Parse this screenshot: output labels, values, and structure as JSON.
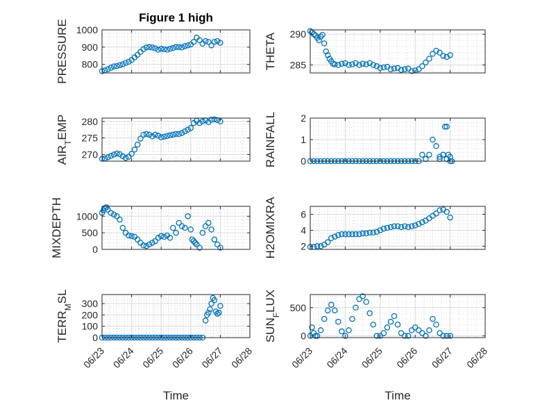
{
  "figure": {
    "title": "Figure 1 high",
    "marker_color": "#0072BD",
    "x_tick_labels": [
      "06/23",
      "06/24",
      "06/25",
      "06/26",
      "06/27",
      "06/28"
    ],
    "xlabel": "Time"
  },
  "chart_data": [
    {
      "type": "scatter",
      "title": "Figure 1 high",
      "ylabel": [
        "PRESSURE"
      ],
      "xlim": [
        0,
        5
      ],
      "ylim": [
        750,
        1000
      ],
      "yticks": [
        800,
        900,
        1000
      ],
      "grid": true,
      "x": [
        0,
        0.1,
        0.2,
        0.3,
        0.4,
        0.5,
        0.6,
        0.7,
        0.8,
        0.9,
        1.0,
        1.1,
        1.2,
        1.3,
        1.4,
        1.5,
        1.6,
        1.7,
        1.8,
        1.9,
        2.0,
        2.1,
        2.2,
        2.3,
        2.4,
        2.5,
        2.6,
        2.7,
        2.8,
        2.9,
        3.0,
        3.1,
        3.2,
        3.3,
        3.4,
        3.5,
        3.6,
        3.7,
        3.8,
        3.9,
        4.0
      ],
      "y": [
        760,
        765,
        772,
        780,
        788,
        790,
        795,
        800,
        808,
        815,
        825,
        840,
        855,
        872,
        888,
        898,
        900,
        897,
        893,
        885,
        890,
        888,
        885,
        890,
        895,
        900,
        900,
        898,
        905,
        910,
        915,
        930,
        955,
        940,
        920,
        935,
        930,
        910,
        930,
        935,
        925
      ]
    },
    {
      "type": "scatter",
      "ylabel": [
        "THETA"
      ],
      "xlim": [
        0,
        5
      ],
      "ylim": [
        283.7,
        290.7
      ],
      "yticks": [
        285,
        290
      ],
      "grid": true,
      "x": [
        0,
        0.05,
        0.1,
        0.15,
        0.2,
        0.25,
        0.3,
        0.35,
        0.4,
        0.45,
        0.5,
        0.55,
        0.6,
        0.65,
        0.7,
        0.8,
        0.9,
        1.0,
        1.1,
        1.2,
        1.3,
        1.4,
        1.5,
        1.6,
        1.7,
        1.8,
        1.9,
        2.0,
        2.1,
        2.2,
        2.3,
        2.4,
        2.5,
        2.6,
        2.7,
        2.8,
        2.9,
        3.0,
        3.1,
        3.2,
        3.3,
        3.4,
        3.5,
        3.6,
        3.7,
        3.8,
        3.9,
        4.0
      ],
      "y": [
        290.5,
        290.3,
        290.0,
        289.8,
        289.4,
        289.0,
        289.6,
        289.9,
        288.5,
        287.2,
        286.6,
        286.0,
        285.6,
        285.2,
        285.1,
        285.0,
        285.2,
        285.3,
        285.0,
        285.1,
        285.3,
        285.0,
        285.2,
        285.1,
        285.3,
        285.0,
        284.8,
        284.5,
        284.6,
        284.7,
        284.3,
        284.4,
        284.5,
        284.2,
        284.3,
        284.4,
        284.0,
        284.1,
        284.3,
        284.8,
        285.4,
        286.0,
        286.8,
        287.3,
        287.0,
        286.5,
        286.3,
        286.6
      ]
    },
    {
      "type": "scatter",
      "ylabel": [
        "AIR",
        "T",
        "EMP"
      ],
      "xlim": [
        0,
        5
      ],
      "ylim": [
        268,
        281
      ],
      "yticks": [
        270,
        275,
        280
      ],
      "grid": true,
      "x": [
        0,
        0.1,
        0.2,
        0.3,
        0.4,
        0.5,
        0.6,
        0.7,
        0.8,
        0.9,
        1.0,
        1.1,
        1.2,
        1.3,
        1.4,
        1.5,
        1.6,
        1.7,
        1.8,
        1.9,
        2.0,
        2.1,
        2.2,
        2.3,
        2.4,
        2.5,
        2.6,
        2.7,
        2.8,
        2.9,
        3.0,
        3.1,
        3.2,
        3.3,
        3.4,
        3.5,
        3.6,
        3.7,
        3.8,
        3.9,
        4.0
      ],
      "y": [
        268.7,
        268.8,
        269.2,
        269.6,
        270.0,
        270.3,
        270.1,
        269.5,
        269.0,
        269.3,
        270.2,
        271.5,
        273.0,
        274.8,
        276.0,
        276.2,
        276.0,
        275.5,
        276.0,
        275.7,
        275.2,
        275.4,
        275.6,
        275.8,
        276.0,
        276.2,
        276.2,
        276.5,
        277.0,
        277.5,
        278.0,
        279.5,
        280.2,
        279.5,
        280.0,
        280.3,
        279.8,
        280.5,
        280.6,
        280.4,
        280.0
      ]
    },
    {
      "type": "scatter",
      "ylabel": [
        "RAINFALL"
      ],
      "xlim": [
        0,
        5
      ],
      "ylim": [
        0,
        2
      ],
      "yticks": [
        0,
        1,
        2
      ],
      "grid": true,
      "x": [
        0,
        0.1,
        0.2,
        0.3,
        0.4,
        0.5,
        0.6,
        0.7,
        0.8,
        0.9,
        1.0,
        1.1,
        1.2,
        1.3,
        1.4,
        1.5,
        1.6,
        1.7,
        1.8,
        1.9,
        2.0,
        2.1,
        2.2,
        2.3,
        2.4,
        2.5,
        2.6,
        2.7,
        2.8,
        2.9,
        3.0,
        3.1,
        3.2,
        3.3,
        3.4,
        3.5,
        3.6,
        3.7,
        3.8,
        3.9,
        4.0,
        3.7,
        3.8,
        3.85,
        3.9,
        3.95,
        4.0,
        4.05
      ],
      "y": [
        0,
        0,
        0,
        0,
        0,
        0,
        0,
        0,
        0,
        0,
        0,
        0,
        0,
        0,
        0,
        0,
        0,
        0,
        0,
        0,
        0,
        0,
        0,
        0,
        0,
        0,
        0,
        0,
        0,
        0,
        0,
        0,
        0.3,
        0.1,
        0.3,
        1.0,
        0.7,
        0.2,
        0.3,
        0.1,
        0,
        0.1,
        0.3,
        1.6,
        1.6,
        0.3,
        0.2,
        0
      ]
    },
    {
      "type": "scatter",
      "ylabel": [
        "MIXDEPTH"
      ],
      "xlim": [
        0,
        5
      ],
      "ylim": [
        0,
        1300
      ],
      "yticks": [
        0,
        500,
        1000
      ],
      "grid": true,
      "x": [
        0,
        0.05,
        0.1,
        0.15,
        0.2,
        0.3,
        0.4,
        0.5,
        0.6,
        0.7,
        0.8,
        0.9,
        1.0,
        1.1,
        1.2,
        1.3,
        1.4,
        1.5,
        1.6,
        1.7,
        1.8,
        1.9,
        2.0,
        2.1,
        2.2,
        2.3,
        2.4,
        2.5,
        2.6,
        2.7,
        2.8,
        2.9,
        3.0,
        3.05,
        3.1,
        3.15,
        3.2,
        3.3,
        3.4,
        3.5,
        3.6,
        3.7,
        3.8,
        3.9,
        4.0
      ],
      "y": [
        1100,
        1180,
        1250,
        1270,
        1200,
        1100,
        1050,
        1000,
        900,
        650,
        500,
        420,
        400,
        380,
        300,
        200,
        120,
        100,
        150,
        200,
        250,
        350,
        400,
        380,
        420,
        350,
        650,
        500,
        800,
        700,
        650,
        1000,
        600,
        300,
        250,
        200,
        150,
        50,
        500,
        700,
        800,
        600,
        300,
        150,
        50
      ]
    },
    {
      "type": "scatter",
      "ylabel": [
        "H2OMIXRA"
      ],
      "xlim": [
        0,
        5
      ],
      "ylim": [
        1.6,
        7
      ],
      "yticks": [
        2,
        4,
        6
      ],
      "grid": true,
      "x": [
        0,
        0.1,
        0.2,
        0.3,
        0.4,
        0.5,
        0.6,
        0.7,
        0.8,
        0.9,
        1.0,
        1.1,
        1.2,
        1.3,
        1.4,
        1.5,
        1.6,
        1.7,
        1.8,
        1.9,
        2.0,
        2.1,
        2.2,
        2.3,
        2.4,
        2.5,
        2.6,
        2.7,
        2.8,
        2.9,
        3.0,
        3.1,
        3.2,
        3.3,
        3.4,
        3.5,
        3.6,
        3.7,
        3.8,
        3.9,
        4.0
      ],
      "y": [
        1.9,
        1.9,
        2.0,
        2.0,
        2.2,
        2.5,
        3.0,
        3.2,
        3.4,
        3.5,
        3.5,
        3.5,
        3.5,
        3.5,
        3.5,
        3.6,
        3.6,
        3.7,
        3.7,
        3.8,
        4.0,
        4.2,
        4.3,
        4.4,
        4.5,
        4.5,
        4.4,
        4.5,
        4.4,
        4.5,
        4.6,
        4.8,
        5.0,
        5.2,
        5.5,
        5.8,
        6.1,
        6.5,
        6.6,
        6.3,
        5.6
      ]
    },
    {
      "type": "scatter",
      "ylabel": [
        "TERR",
        "M",
        "SL"
      ],
      "xlim": [
        0,
        5
      ],
      "ylim": [
        0,
        380
      ],
      "yticks": [
        0,
        100,
        200,
        300
      ],
      "grid": true,
      "x": [
        0,
        0.1,
        0.2,
        0.3,
        0.4,
        0.5,
        0.6,
        0.7,
        0.8,
        0.9,
        1.0,
        1.1,
        1.2,
        1.3,
        1.4,
        1.5,
        1.6,
        1.7,
        1.8,
        1.9,
        2.0,
        2.1,
        2.2,
        2.3,
        2.4,
        2.5,
        2.6,
        2.7,
        2.8,
        2.9,
        3.0,
        3.1,
        3.2,
        3.3,
        3.4,
        3.5,
        3.55,
        3.6,
        3.65,
        3.7,
        3.75,
        3.8,
        3.85,
        3.9,
        3.95,
        4.0
      ],
      "y": [
        0,
        0,
        0,
        0,
        0,
        0,
        0,
        0,
        0,
        0,
        0,
        0,
        0,
        0,
        0,
        0,
        0,
        0,
        0,
        0,
        0,
        0,
        0,
        0,
        0,
        0,
        0,
        0,
        0,
        0,
        0,
        0,
        0,
        0,
        0,
        150,
        200,
        220,
        250,
        300,
        350,
        330,
        230,
        210,
        220,
        280
      ]
    },
    {
      "type": "scatter",
      "ylabel": [
        "SUN",
        "F",
        "LUX"
      ],
      "xlim": [
        0,
        5
      ],
      "ylim": [
        -30,
        730
      ],
      "yticks": [
        0,
        500
      ],
      "grid": true,
      "x": [
        0,
        0.05,
        0.1,
        0.15,
        0.2,
        0.3,
        0.4,
        0.5,
        0.6,
        0.7,
        0.8,
        0.9,
        1.0,
        1.1,
        1.2,
        1.3,
        1.4,
        1.5,
        1.6,
        1.7,
        1.8,
        1.9,
        2.0,
        2.1,
        2.2,
        2.3,
        2.4,
        2.5,
        2.6,
        2.7,
        2.8,
        2.9,
        3.0,
        3.1,
        3.2,
        3.3,
        3.4,
        3.5,
        3.6,
        3.7,
        3.8,
        3.9,
        4.0
      ],
      "y": [
        0,
        150,
        50,
        0,
        0,
        100,
        300,
        450,
        550,
        450,
        250,
        80,
        0,
        100,
        300,
        500,
        650,
        700,
        600,
        400,
        200,
        0,
        0,
        50,
        150,
        250,
        350,
        200,
        50,
        0,
        0,
        100,
        150,
        100,
        50,
        0,
        100,
        300,
        200,
        50,
        0,
        0,
        0
      ]
    }
  ]
}
